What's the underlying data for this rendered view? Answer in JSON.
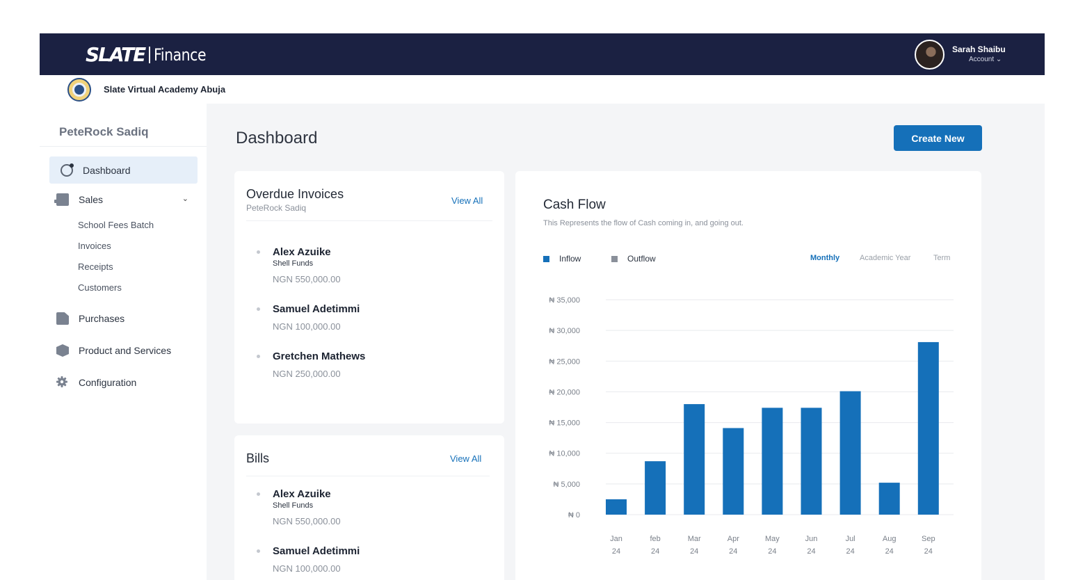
{
  "header": {
    "brand": "SLATE",
    "product": "Finance",
    "user_name": "Sarah Shaibu",
    "account_label": "Account ⌄"
  },
  "org": {
    "name": "Slate Virtual Academy Abuja"
  },
  "sidebar": {
    "user": "PeteRock Sadiq",
    "items": [
      {
        "label": "Dashboard",
        "icon": "dashboard-icon"
      },
      {
        "label": "Sales",
        "icon": "register-icon"
      },
      {
        "label": "Purchases",
        "icon": "file-icon"
      },
      {
        "label": "Product and Services",
        "icon": "box-icon"
      },
      {
        "label": "Configuration",
        "icon": "gear-icon"
      }
    ],
    "sales_sub": [
      "School Fees Batch",
      "Invoices",
      "Receipts",
      "Customers"
    ]
  },
  "main": {
    "title": "Dashboard",
    "create_label": "Create New"
  },
  "overdue": {
    "title": "Overdue Invoices",
    "subtitle": "PeteRock Sadiq",
    "view_all": "View All",
    "items": [
      {
        "name": "Alex Azuike",
        "org": "Shell Funds",
        "amount": "NGN 550,000.00"
      },
      {
        "name": "Samuel Adetimmi",
        "amount": "NGN 100,000.00"
      },
      {
        "name": "Gretchen Mathews",
        "amount": "NGN 250,000.00"
      }
    ]
  },
  "bills": {
    "title": "Bills",
    "view_all": "View All",
    "items": [
      {
        "name": "Alex Azuike",
        "org": "Shell Funds",
        "amount": "NGN 550,000.00"
      },
      {
        "name": "Samuel Adetimmi",
        "amount": "NGN 100,000.00"
      }
    ]
  },
  "cashflow": {
    "title": "Cash Flow",
    "subtitle": "This Represents the flow of Cash coming in, and going out.",
    "legend": [
      {
        "label": "Inflow",
        "color": "#1570b9"
      },
      {
        "label": "Outflow",
        "color": "#8a909a"
      }
    ],
    "periods": [
      "Monthly",
      "Academic Year",
      "Term"
    ],
    "active_period": "Monthly"
  },
  "chart_data": {
    "type": "bar",
    "categories": [
      "Jan 24",
      "feb 24",
      "Mar 24",
      "Apr 24",
      "May 24",
      "Jun 24",
      "Jul 24",
      "Aug 24",
      "Sep 24"
    ],
    "series": [
      {
        "name": "Inflow",
        "values": [
          2500,
          8700,
          18000,
          14100,
          17400,
          17400,
          20100,
          5200,
          28100
        ]
      }
    ],
    "ylim": [
      0,
      35000
    ],
    "yticks": [
      0,
      5000,
      10000,
      15000,
      20000,
      25000,
      30000,
      35000
    ],
    "ytick_labels": [
      "₦ 0",
      "₦ 5,000",
      "₦ 10,000",
      "₦ 15,000",
      "₦ 20,000",
      "₦ 25,000",
      "₦ 30,000",
      "₦ 35,000"
    ],
    "bar_color": "#1570b9",
    "grid": true
  }
}
